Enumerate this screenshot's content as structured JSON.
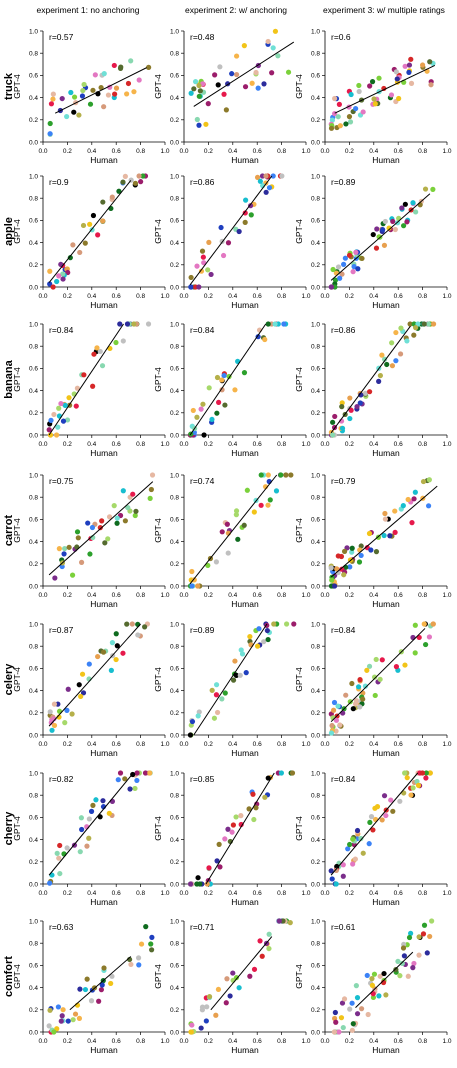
{
  "columns": [
    "experiment 1: no anchoring",
    "experiment 2: w/ anchoring",
    "experiment 3: w/ multiple ratings"
  ],
  "axes": {
    "xlabel": "Human",
    "ylabel": "GPT-4",
    "xlim": [
      0,
      1
    ],
    "ylim": [
      0,
      1
    ],
    "xticks": [
      "0.0",
      "0.2",
      "0.4",
      "0.6",
      "0.8",
      "1.0"
    ],
    "yticks": [
      "0.0",
      "0.2",
      "0.4",
      "0.6",
      "0.8",
      "1.0"
    ]
  },
  "palette": [
    "#e6194b",
    "#d62728",
    "#e377c2",
    "#9b1d6b",
    "#7b2d8b",
    "#2c2c9c",
    "#1f3fbf",
    "#3b82f6",
    "#17becf",
    "#6fe0d6",
    "#88d8b0",
    "#2ca02c",
    "#0f6b1f",
    "#7bd13b",
    "#a6d96a",
    "#556b2f",
    "#8c7a2b",
    "#b5b04a",
    "#f2c418",
    "#f6b44a",
    "#e8a04e",
    "#d69a7a",
    "#e6b8a2",
    "#c0c0c0",
    "#000000"
  ],
  "chart_data": {
    "type": "scatter",
    "rows": [
      {
        "name": "truck",
        "panels": [
          {
            "r": "r=0.57",
            "fit": [
              [
                0.1,
                0.26
              ],
              [
                0.85,
                0.67
              ]
            ],
            "seed": 11,
            "n": 40,
            "spread": 0.12
          },
          {
            "r": "r=0.48",
            "fit": [
              [
                0.08,
                0.32
              ],
              [
                0.9,
                0.9
              ]
            ],
            "seed": 12,
            "n": 40,
            "spread": 0.16
          },
          {
            "r": "r=0.6",
            "fit": [
              [
                0.08,
                0.26
              ],
              [
                0.9,
                0.69
              ]
            ],
            "seed": 13,
            "n": 60,
            "spread": 0.1
          }
        ]
      },
      {
        "name": "apple",
        "panels": [
          {
            "r": "r=0.9",
            "fit": [
              [
                0.05,
                0.04
              ],
              [
                0.72,
                0.96
              ]
            ],
            "seed": 21,
            "n": 40,
            "spread": 0.08
          },
          {
            "r": "r=0.86",
            "fit": [
              [
                0.05,
                0.02
              ],
              [
                0.72,
                1.0
              ]
            ],
            "seed": 22,
            "n": 40,
            "spread": 0.1
          },
          {
            "r": "r=0.89",
            "fit": [
              [
                0.05,
                0.06
              ],
              [
                0.86,
                0.84
              ]
            ],
            "seed": 23,
            "n": 60,
            "spread": 0.07
          }
        ]
      },
      {
        "name": "banana",
        "panels": [
          {
            "r": "r=0.84",
            "fit": [
              [
                0.05,
                0.0
              ],
              [
                0.66,
                1.0
              ]
            ],
            "seed": 31,
            "n": 40,
            "spread": 0.1
          },
          {
            "r": "r=0.84",
            "fit": [
              [
                0.05,
                0.0
              ],
              [
                0.67,
                1.0
              ]
            ],
            "seed": 32,
            "n": 40,
            "spread": 0.12
          },
          {
            "r": "r=0.86",
            "fit": [
              [
                0.05,
                0.02
              ],
              [
                0.7,
                0.98
              ]
            ],
            "seed": 33,
            "n": 60,
            "spread": 0.09
          }
        ]
      },
      {
        "name": "carrot",
        "panels": [
          {
            "r": "r=0.75",
            "fit": [
              [
                0.05,
                0.1
              ],
              [
                0.9,
                0.94
              ]
            ],
            "seed": 41,
            "n": 40,
            "spread": 0.12
          },
          {
            "r": "r=0.74",
            "fit": [
              [
                0.05,
                0.02
              ],
              [
                0.76,
                1.0
              ]
            ],
            "seed": 42,
            "n": 40,
            "spread": 0.14
          },
          {
            "r": "r=0.79",
            "fit": [
              [
                0.05,
                0.08
              ],
              [
                0.92,
                0.9
              ]
            ],
            "seed": 43,
            "n": 60,
            "spread": 0.1
          }
        ]
      },
      {
        "name": "celery",
        "panels": [
          {
            "r": "r=0.87",
            "fit": [
              [
                0.05,
                0.08
              ],
              [
                0.8,
                1.0
              ]
            ],
            "seed": 51,
            "n": 40,
            "spread": 0.1
          },
          {
            "r": "r=0.89",
            "fit": [
              [
                0.08,
                0.0
              ],
              [
                0.68,
                1.0
              ]
            ],
            "seed": 52,
            "n": 40,
            "spread": 0.1
          },
          {
            "r": "r=0.84",
            "fit": [
              [
                0.05,
                0.12
              ],
              [
                0.82,
                0.96
              ]
            ],
            "seed": 53,
            "n": 60,
            "spread": 0.1
          }
        ]
      },
      {
        "name": "cherry",
        "panels": [
          {
            "r": "r=0.82",
            "fit": [
              [
                0.05,
                0.08
              ],
              [
                0.74,
                1.0
              ]
            ],
            "seed": 61,
            "n": 40,
            "spread": 0.11
          },
          {
            "r": "r=0.85",
            "fit": [
              [
                0.18,
                0.0
              ],
              [
                0.74,
                1.0
              ]
            ],
            "seed": 62,
            "n": 40,
            "spread": 0.11
          },
          {
            "r": "r=0.84",
            "fit": [
              [
                0.05,
                0.08
              ],
              [
                0.76,
                1.0
              ]
            ],
            "seed": 63,
            "n": 60,
            "spread": 0.1
          }
        ]
      },
      {
        "name": "comfort",
        "panels": [
          {
            "r": "r=0.63",
            "fit": [
              [
                0.22,
                0.2
              ],
              [
                0.72,
                0.68
              ]
            ],
            "seed": 71,
            "n": 40,
            "spread": 0.1
          },
          {
            "r": "r=0.71",
            "fit": [
              [
                0.22,
                0.2
              ],
              [
                0.72,
                0.86
              ]
            ],
            "seed": 72,
            "n": 40,
            "spread": 0.1
          },
          {
            "r": "r=0.61",
            "fit": [
              [
                0.25,
                0.22
              ],
              [
                0.72,
                0.72
              ]
            ],
            "seed": 73,
            "n": 60,
            "spread": 0.12
          }
        ]
      }
    ]
  }
}
